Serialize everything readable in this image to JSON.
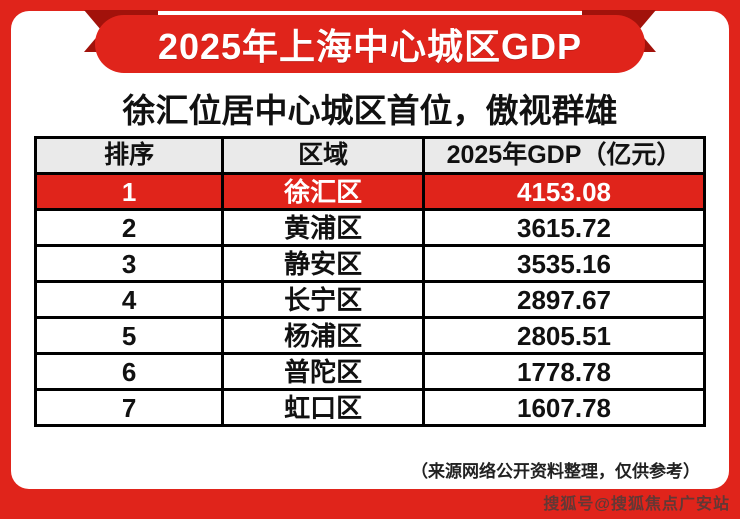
{
  "banner": {
    "title": "2025年上海中心城区GDP"
  },
  "subtitle": "徐汇位居中心城区首位，傲视群雄",
  "chart_data": {
    "type": "table",
    "title": "2025年上海中心城区GDP",
    "columns": [
      "排序",
      "区域",
      "2025年GDP（亿元）"
    ],
    "rows": [
      {
        "rank": "1",
        "district": "徐汇区",
        "gdp": "4153.08",
        "highlight": true
      },
      {
        "rank": "2",
        "district": "黄浦区",
        "gdp": "3615.72",
        "highlight": false
      },
      {
        "rank": "3",
        "district": "静安区",
        "gdp": "3535.16",
        "highlight": false
      },
      {
        "rank": "4",
        "district": "长宁区",
        "gdp": "2897.67",
        "highlight": false
      },
      {
        "rank": "5",
        "district": "杨浦区",
        "gdp": "2805.51",
        "highlight": false
      },
      {
        "rank": "6",
        "district": "普陀区",
        "gdp": "1778.78",
        "highlight": false
      },
      {
        "rank": "7",
        "district": "虹口区",
        "gdp": "1607.78",
        "highlight": false
      }
    ]
  },
  "footnote": "（来源网络公开资料整理，仅供参考）",
  "watermark": "搜狐号@搜狐焦点广安站",
  "colors": {
    "accent_red": "#e0241b",
    "ribbon_dark_red": "#a2120b",
    "header_gray": "#eaeaea",
    "highlight_text": "#ffffff"
  }
}
